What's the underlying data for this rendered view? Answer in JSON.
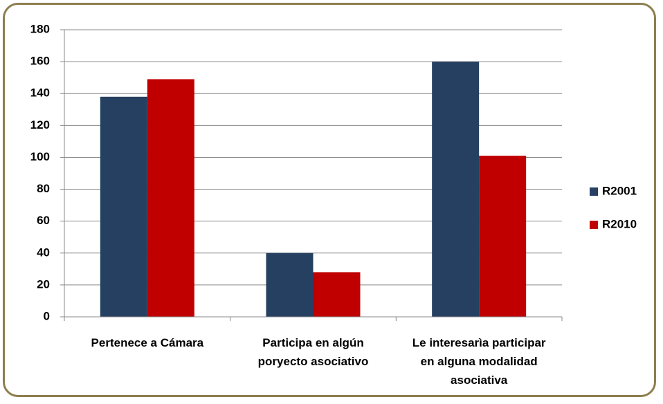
{
  "chart_data": {
    "type": "bar",
    "categories": [
      "Pertenece a Cámara",
      "Participa en algún poryecto asociativo",
      "Le interesarìa participar en alguna modalidad asociativa"
    ],
    "series": [
      {
        "name": "R2001",
        "color": "#254061",
        "values": [
          138,
          40,
          160
        ]
      },
      {
        "name": "R2010",
        "color": "#c00000",
        "values": [
          149,
          28,
          101
        ]
      }
    ],
    "ylim": [
      0,
      180
    ],
    "yticks": [
      0,
      20,
      40,
      60,
      80,
      100,
      120,
      140,
      160,
      180
    ],
    "grid": true,
    "legend": "right"
  }
}
